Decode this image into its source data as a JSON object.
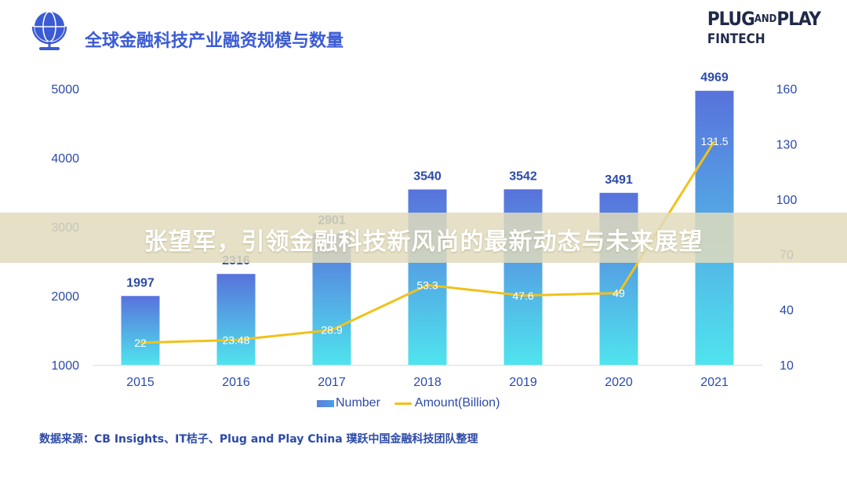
{
  "title": "全球金融科技产业融资规模与数量",
  "logo": {
    "line1_main": "PLUG",
    "line1_small": "AND",
    "line1_end": "PLAY",
    "line2": "FINTECH"
  },
  "banner": "张望军，引领金融科技新风尚的最新动态与未来展望",
  "legend": {
    "number": "Number",
    "amount": "Amount(Billion)"
  },
  "source": "数据来源：CB Insights、IT桔子、Plug and Play China 璞跃中国金融科技团队整理",
  "colors": {
    "bar_top": "#5872dc",
    "bar_bottom": "#4fe4ee",
    "line": "#f2c11b",
    "axis_text": "#2c4aa8"
  },
  "chart_data": {
    "type": "bar",
    "categories": [
      "2015",
      "2016",
      "2017",
      "2018",
      "2019",
      "2020",
      "2021"
    ],
    "series": [
      {
        "name": "Number",
        "type": "bar",
        "axis": "left",
        "values": [
          1997,
          2316,
          2901,
          3540,
          3542,
          3491,
          4969
        ]
      },
      {
        "name": "Amount(Billion)",
        "type": "line",
        "axis": "right",
        "values": [
          22,
          23.48,
          28.9,
          53.3,
          47.6,
          49,
          131.5
        ]
      }
    ],
    "y_left": {
      "ticks": [
        1000,
        2000,
        3000,
        4000,
        5000
      ],
      "range": [
        1000,
        5000
      ]
    },
    "y_right": {
      "ticks": [
        10,
        40,
        70,
        100,
        130,
        160
      ],
      "range": [
        10,
        160
      ]
    },
    "legend_position": "bottom"
  }
}
